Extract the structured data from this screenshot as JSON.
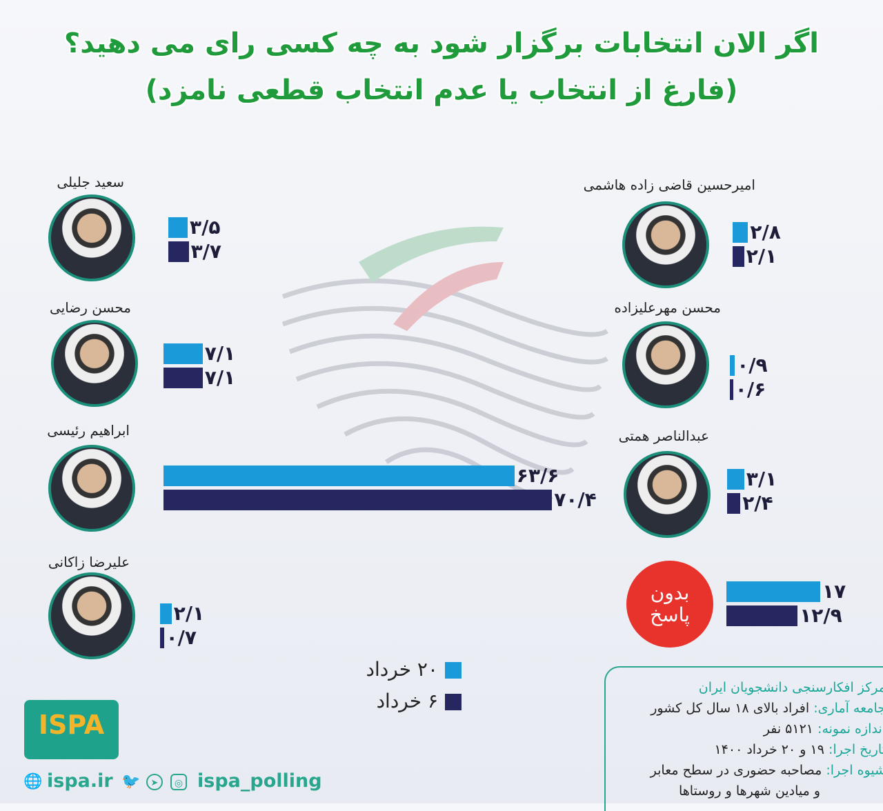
{
  "chart_data": {
    "type": "bar",
    "title": "اگر الان انتخابات برگزار شود به چه کسی رای می دهید؟",
    "subtitle": "(فارغ از انتخاب یا عدم انتخاب قطعی نامزد)",
    "series": [
      {
        "name": "۲۰ خرداد",
        "color": "#1a9ad9"
      },
      {
        "name": "۶ خرداد",
        "color": "#262660"
      }
    ],
    "categories": [
      {
        "name": "سعید جلیلی",
        "values": [
          3.5,
          3.7
        ],
        "labels": [
          "۳/۵",
          "۳/۷"
        ]
      },
      {
        "name": "محسن رضایی",
        "values": [
          7.1,
          7.1
        ],
        "labels": [
          "۷/۱",
          "۷/۱"
        ]
      },
      {
        "name": "ابراهیم رئیسی",
        "values": [
          63.6,
          70.4
        ],
        "labels": [
          "۶۳/۶",
          "۷۰/۴"
        ]
      },
      {
        "name": "علیرضا زاکانی",
        "values": [
          2.1,
          0.7
        ],
        "labels": [
          "۲/۱",
          "۰/۷"
        ]
      },
      {
        "name": "امیرحسین قاضی زاده هاشمی",
        "values": [
          2.8,
          2.1
        ],
        "labels": [
          "۲/۸",
          "۲/۱"
        ]
      },
      {
        "name": "محسن مهرعلیزاده",
        "values": [
          0.9,
          0.6
        ],
        "labels": [
          "۰/۹",
          "۰/۶"
        ]
      },
      {
        "name": "عبدالناصر همتی",
        "values": [
          3.1,
          2.4
        ],
        "labels": [
          "۳/۱",
          "۲/۴"
        ]
      },
      {
        "name": "بدون پاسخ",
        "values": [
          17,
          12.9
        ],
        "labels": [
          "۱۷",
          "۱۲/۹"
        ]
      }
    ]
  },
  "info": {
    "org": "مرکز افکارسنجی دانشجویان ایران",
    "rows": [
      {
        "k": "جامعه آماری:",
        "v": " افراد بالای ۱۸ سال کل کشور"
      },
      {
        "k": "اندازه نمونه:",
        "v": " ۵۱۲۱ نفر"
      },
      {
        "k": "تاریخ اجرا:",
        "v": " ۱۹ و ۲۰ خرداد ۱۴۰۰"
      },
      {
        "k": "شیوه اجرا:",
        "v": " مصاحبه حضوری در سطح معابر"
      }
    ],
    "last": "و میادین شهرها و روستاها"
  },
  "footer": {
    "logo": "ISPA",
    "website": "ispa.ir",
    "handle": "ispa_polling"
  },
  "no_answer": {
    "line1": "بدون",
    "line2": "پاسخ"
  }
}
